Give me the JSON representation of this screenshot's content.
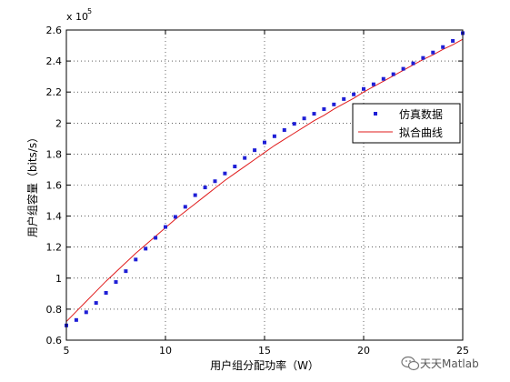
{
  "chart_data": {
    "type": "line",
    "xlabel": "用户组分配功率（W）",
    "ylabel": "用户组容量（bits/s）",
    "xlim": [
      5,
      25
    ],
    "ylim": [
      0.6,
      2.6
    ],
    "y_multiplier_label": "x 10",
    "y_multiplier_exponent": "5",
    "x_ticks": [
      "5",
      "10",
      "15",
      "20",
      "25"
    ],
    "y_ticks": [
      "0.6",
      "0.8",
      "1",
      "1.2",
      "1.4",
      "1.6",
      "1.8",
      "2",
      "2.2",
      "2.4",
      "2.6"
    ],
    "grid": true,
    "legend_position": "right",
    "series": [
      {
        "name": "仿真数据",
        "style": "markers",
        "color": "#1f1fd6",
        "x": [
          5,
          5.5,
          6,
          6.5,
          7,
          7.5,
          8,
          8.5,
          9,
          9.5,
          10,
          10.5,
          11,
          11.5,
          12,
          12.5,
          13,
          13.5,
          14,
          14.5,
          15,
          15.5,
          16,
          16.5,
          17,
          17.5,
          18,
          18.5,
          19,
          19.5,
          20,
          20.5,
          21,
          21.5,
          22,
          22.5,
          23,
          23.5,
          24,
          24.5,
          25
        ],
        "y": [
          0.695,
          0.73,
          0.78,
          0.84,
          0.905,
          0.975,
          1.045,
          1.12,
          1.19,
          1.26,
          1.33,
          1.395,
          1.46,
          1.535,
          1.585,
          1.625,
          1.675,
          1.72,
          1.775,
          1.825,
          1.875,
          1.915,
          1.955,
          1.995,
          2.03,
          2.06,
          2.09,
          2.12,
          2.155,
          2.185,
          2.22,
          2.25,
          2.285,
          2.315,
          2.35,
          2.385,
          2.42,
          2.455,
          2.49,
          2.53,
          2.58
        ]
      },
      {
        "name": "拟合曲线",
        "style": "line",
        "color": "#e01b1b",
        "x": [
          5,
          5.5,
          6,
          6.5,
          7,
          7.5,
          8,
          8.5,
          9,
          9.5,
          10,
          10.5,
          11,
          11.5,
          12,
          12.5,
          13,
          13.5,
          14,
          14.5,
          15,
          15.5,
          16,
          16.5,
          17,
          17.5,
          18,
          18.5,
          19,
          19.5,
          20,
          20.5,
          21,
          21.5,
          22,
          22.5,
          23,
          23.5,
          24,
          24.5,
          25
        ],
        "y": [
          0.72,
          0.785,
          0.85,
          0.915,
          0.98,
          1.04,
          1.1,
          1.16,
          1.215,
          1.27,
          1.325,
          1.38,
          1.43,
          1.48,
          1.53,
          1.58,
          1.63,
          1.675,
          1.72,
          1.765,
          1.81,
          1.855,
          1.895,
          1.935,
          1.975,
          2.015,
          2.05,
          2.09,
          2.125,
          2.16,
          2.2,
          2.235,
          2.27,
          2.305,
          2.34,
          2.375,
          2.41,
          2.44,
          2.475,
          2.505,
          2.54
        ]
      }
    ]
  },
  "watermark": {
    "text": "天天Matlab",
    "icon": "wechat-icon"
  }
}
